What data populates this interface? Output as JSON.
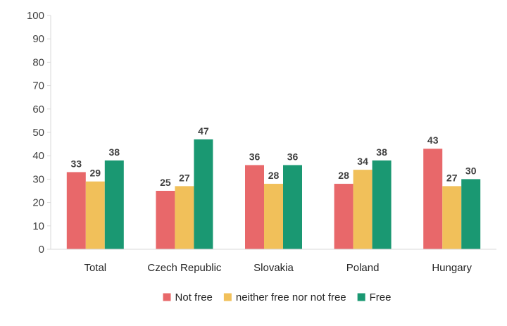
{
  "chart_data": {
    "type": "bar",
    "categories": [
      "Total",
      "Czech Republic",
      "Slovakia",
      "Poland",
      "Hungary"
    ],
    "series": [
      {
        "name": "Not free",
        "values": [
          33,
          25,
          36,
          28,
          43
        ],
        "color": "#E8686A"
      },
      {
        "name": "neither free nor not free",
        "values": [
          29,
          27,
          28,
          34,
          27
        ],
        "color": "#F1C05A"
      },
      {
        "name": "Free",
        "values": [
          38,
          47,
          36,
          38,
          30
        ],
        "color": "#1A9872"
      }
    ],
    "ylim": [
      0,
      100
    ],
    "yticks": [
      0,
      10,
      20,
      30,
      40,
      50,
      60,
      70,
      80,
      90,
      100
    ],
    "grid": false,
    "legend_position": "bottom"
  }
}
